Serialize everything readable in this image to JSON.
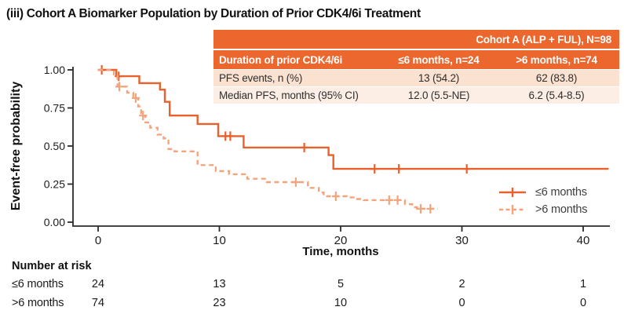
{
  "title": "(iii) Cohort A Biomarker Population by Duration of Prior CDK4/6i Treatment",
  "summary_table": {
    "header_span": "Cohort A (ALP + FUL), N=98",
    "col_header": "Duration of prior CDK4/6i",
    "col1": "≤6 months, n=24",
    "col2": ">6 months, n=74",
    "rows": [
      {
        "label": "PFS events, n (%)",
        "v1": "13 (54.2)",
        "v2": "62 (83.8)"
      },
      {
        "label": "Median PFS, months (95% CI)",
        "v1": "12.0 (5.5-NE)",
        "v2": "6.2 (5.4-8.5)"
      }
    ]
  },
  "colors": {
    "series_solid": "#E8612C",
    "series_dashed": "#F3A47D",
    "table_header_bg": "#EB672E",
    "table_row1_bg": "#FAE1D0",
    "table_row2_bg": "#FCEEE5",
    "axis": "#2A2A2A"
  },
  "chart_data": {
    "type": "line",
    "subtype": "kaplan-meier-step",
    "xlabel": "Time, months",
    "ylabel": "Event-free probability",
    "xlim": [
      -2,
      42.2
    ],
    "ylim": [
      0,
      1
    ],
    "grid": false,
    "legend_position": "right-inside",
    "xticks": [
      {
        "label": "0",
        "v": 0
      },
      {
        "label": "10",
        "v": 10
      },
      {
        "label": "20",
        "v": 20
      },
      {
        "label": "30",
        "v": 30
      },
      {
        "label": "40",
        "v": 40
      }
    ],
    "yticks": [
      {
        "label": "0.00",
        "v": 0
      },
      {
        "label": "0.25",
        "v": 0.25
      },
      {
        "label": "0.50",
        "v": 0.5
      },
      {
        "label": "0.75",
        "v": 0.75
      },
      {
        "label": "1.00",
        "v": 1
      }
    ],
    "series": [
      {
        "name": "≤6 months",
        "n": 24,
        "style": "solid",
        "color": "#E8612C",
        "steps": [
          [
            0,
            1.0
          ],
          [
            1.5,
            0.958
          ],
          [
            3.4,
            0.913
          ],
          [
            5.1,
            0.87
          ],
          [
            5.5,
            0.79
          ],
          [
            5.9,
            0.7
          ],
          [
            8.2,
            0.645
          ],
          [
            9.9,
            0.565
          ],
          [
            12.0,
            0.49
          ],
          [
            19.0,
            0.44
          ],
          [
            19.4,
            0.35
          ]
        ],
        "end_time": 42.1,
        "censors": [
          [
            0.3,
            1.0
          ],
          [
            1.7,
            0.958
          ],
          [
            10.5,
            0.565
          ],
          [
            10.9,
            0.565
          ],
          [
            17.0,
            0.49
          ],
          [
            22.8,
            0.35
          ],
          [
            24.8,
            0.35
          ],
          [
            30.4,
            0.35
          ]
        ]
      },
      {
        "name": ">6 months",
        "n": 74,
        "style": "dashed",
        "color": "#F3A47D",
        "steps": [
          [
            0,
            1.0
          ],
          [
            1.3,
            0.96
          ],
          [
            1.6,
            0.89
          ],
          [
            2.4,
            0.85
          ],
          [
            2.9,
            0.815
          ],
          [
            3.3,
            0.76
          ],
          [
            3.55,
            0.7
          ],
          [
            3.9,
            0.655
          ],
          [
            4.3,
            0.62
          ],
          [
            4.9,
            0.575
          ],
          [
            5.4,
            0.55
          ],
          [
            5.8,
            0.48
          ],
          [
            6.3,
            0.465
          ],
          [
            8.2,
            0.375
          ],
          [
            9.7,
            0.335
          ],
          [
            10.8,
            0.315
          ],
          [
            12.3,
            0.285
          ],
          [
            13.9,
            0.263
          ],
          [
            17.3,
            0.225
          ],
          [
            18.2,
            0.195
          ],
          [
            18.6,
            0.17
          ],
          [
            20.5,
            0.163
          ],
          [
            21.2,
            0.152
          ],
          [
            21.9,
            0.145
          ],
          [
            25.3,
            0.118
          ],
          [
            25.9,
            0.098
          ],
          [
            26.3,
            0.088
          ]
        ],
        "end_time": 28.0,
        "censors": [
          [
            1.75,
            0.89
          ],
          [
            3.1,
            0.815
          ],
          [
            3.7,
            0.7
          ],
          [
            16.3,
            0.263
          ],
          [
            19.6,
            0.17
          ],
          [
            24.0,
            0.145
          ],
          [
            24.7,
            0.145
          ],
          [
            26.6,
            0.088
          ],
          [
            27.4,
            0.088
          ]
        ]
      }
    ],
    "number_at_risk": {
      "title": "Number at risk",
      "times": [
        0,
        10,
        20,
        30,
        40
      ],
      "rows": [
        {
          "label": "≤6 months",
          "values": [
            24,
            13,
            5,
            2,
            1
          ]
        },
        {
          "label": ">6 months",
          "values": [
            74,
            23,
            10,
            0,
            0
          ]
        }
      ]
    }
  }
}
